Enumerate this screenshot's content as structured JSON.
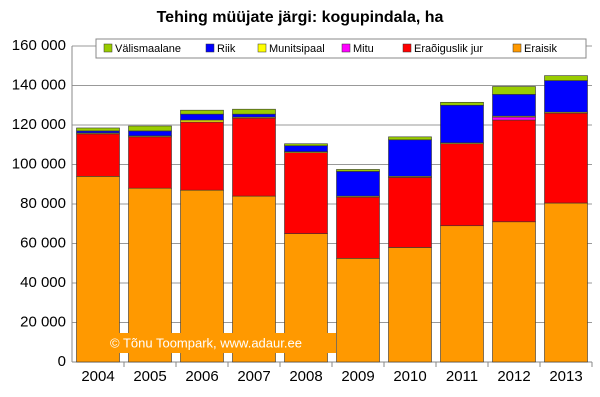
{
  "chart_data": {
    "type": "stacked_bar",
    "title": "Tehing müüjate järgi: kogupindala, ha",
    "annotation": "© Tõnu Toompark, www.adaur.ee",
    "categories": [
      "2004",
      "2005",
      "2006",
      "2007",
      "2008",
      "2009",
      "2010",
      "2011",
      "2012",
      "2013"
    ],
    "series": [
      {
        "name": "Eraisik",
        "color": "#ff9900",
        "values": [
          94000,
          88000,
          87000,
          84000,
          65000,
          52500,
          58000,
          69000,
          71000,
          80500
        ]
      },
      {
        "name": "Eraõiguslik jur",
        "color": "#ff0000",
        "values": [
          21500,
          26000,
          34500,
          39500,
          41000,
          31000,
          35500,
          41500,
          51500,
          45500
        ]
      },
      {
        "name": "Mitu",
        "color": "#ff00ff",
        "values": [
          0,
          0,
          0,
          0,
          0,
          0,
          0,
          0,
          1500,
          0
        ]
      },
      {
        "name": "Munitsipaal",
        "color": "#ffff00",
        "values": [
          500,
          500,
          1000,
          500,
          500,
          500,
          500,
          500,
          500,
          500
        ]
      },
      {
        "name": "Riik",
        "color": "#0000ff",
        "values": [
          1000,
          2500,
          3000,
          1500,
          3000,
          12500,
          18500,
          19000,
          11000,
          16000
        ]
      },
      {
        "name": "Välismaalane",
        "color": "#99cc00",
        "values": [
          1500,
          2500,
          2000,
          2500,
          1000,
          1000,
          1500,
          1500,
          4000,
          2500
        ]
      }
    ],
    "ylim": [
      0,
      160000
    ],
    "yticks": [
      0,
      {
        "value": 20000,
        "label": "20 000"
      },
      {
        "value": 40000,
        "label": "40 000"
      },
      {
        "value": 60000,
        "label": "60 000"
      },
      {
        "value": 80000,
        "label": "80 000"
      },
      {
        "value": 100000,
        "label": "100 000"
      },
      {
        "value": 120000,
        "label": "120 000"
      },
      {
        "value": 140000,
        "label": "140 000"
      },
      {
        "value": 160000,
        "label": "160 000"
      }
    ],
    "grid": true
  }
}
